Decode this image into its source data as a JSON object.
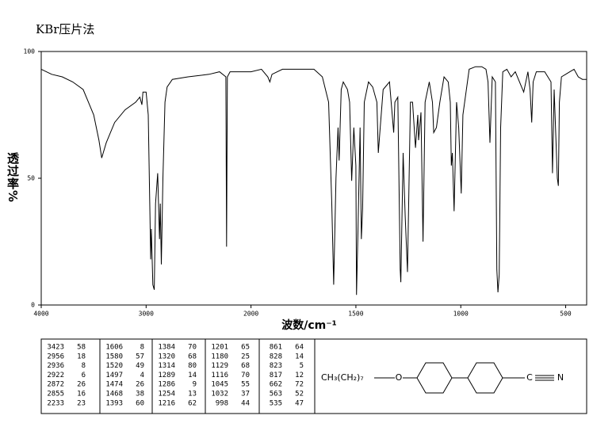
{
  "chart_data": {
    "type": "line",
    "title": "KBr压片法",
    "x_label": "波数/cm⁻¹",
    "y_label": "透过率%",
    "color": "#000000",
    "x": [
      4000,
      3900,
      3800,
      3700,
      3600,
      3500,
      3450,
      3423,
      3380,
      3300,
      3200,
      3100,
      3060,
      3040,
      3030,
      3000,
      2980,
      2956,
      2950,
      2936,
      2922,
      2910,
      2890,
      2872,
      2865,
      2855,
      2840,
      2820,
      2800,
      2750,
      2600,
      2400,
      2300,
      2240,
      2233,
      2225,
      2200,
      2100,
      2000,
      1950,
      1920,
      1910,
      1900,
      1850,
      1800,
      1700,
      1660,
      1630,
      1615,
      1606,
      1595,
      1585,
      1580,
      1570,
      1560,
      1540,
      1530,
      1520,
      1510,
      1500,
      1497,
      1490,
      1480,
      1474,
      1468,
      1460,
      1440,
      1420,
      1400,
      1393,
      1384,
      1370,
      1340,
      1320,
      1314,
      1300,
      1289,
      1286,
      1275,
      1265,
      1254,
      1240,
      1230,
      1216,
      1205,
      1201,
      1190,
      1180,
      1170,
      1150,
      1135,
      1129,
      1116,
      1100,
      1080,
      1060,
      1050,
      1045,
      1040,
      1032,
      1020,
      1010,
      998,
      990,
      960,
      930,
      900,
      880,
      870,
      861,
      850,
      835,
      828,
      823,
      817,
      810,
      800,
      780,
      760,
      740,
      720,
      700,
      680,
      670,
      662,
      655,
      640,
      600,
      570,
      563,
      555,
      540,
      535,
      530,
      520,
      500,
      480,
      460,
      440,
      420,
      400
    ],
    "values": [
      93,
      91,
      90,
      88,
      85,
      75,
      65,
      58,
      64,
      72,
      77,
      80,
      82,
      79,
      84,
      84,
      75,
      18,
      30,
      8,
      6,
      40,
      52,
      26,
      40,
      16,
      50,
      80,
      86,
      89,
      90,
      91,
      92,
      90,
      23,
      90,
      92,
      92,
      92,
      93,
      90,
      88,
      91,
      93,
      93,
      93,
      90,
      80,
      40,
      8,
      50,
      70,
      57,
      85,
      88,
      85,
      80,
      49,
      70,
      55,
      4,
      30,
      70,
      26,
      38,
      80,
      88,
      86,
      80,
      60,
      70,
      85,
      88,
      68,
      80,
      82,
      14,
      9,
      60,
      35,
      13,
      80,
      80,
      62,
      75,
      65,
      76,
      25,
      80,
      88,
      80,
      68,
      70,
      80,
      90,
      88,
      80,
      55,
      60,
      37,
      80,
      70,
      44,
      75,
      93,
      94,
      94,
      93,
      88,
      64,
      90,
      88,
      14,
      5,
      12,
      70,
      92,
      93,
      90,
      92,
      88,
      84,
      92,
      85,
      72,
      88,
      92,
      92,
      88,
      52,
      85,
      50,
      47,
      80,
      90,
      91,
      92,
      93,
      90,
      89,
      89
    ],
    "xlim": [
      4000,
      400
    ],
    "xticks": [
      4000,
      3000,
      2000,
      1500,
      1000,
      500
    ],
    "ylim": [
      0,
      100
    ],
    "yticks": [
      0,
      50,
      100
    ]
  },
  "peak_table": {
    "columns": [
      [
        [
          3423,
          58
        ],
        [
          2956,
          18
        ],
        [
          2936,
          8
        ],
        [
          2922,
          6
        ],
        [
          2872,
          26
        ],
        [
          2855,
          16
        ],
        [
          2233,
          23
        ]
      ],
      [
        [
          1606,
          8
        ],
        [
          1580,
          57
        ],
        [
          1520,
          49
        ],
        [
          1497,
          4
        ],
        [
          1474,
          26
        ],
        [
          1468,
          38
        ],
        [
          1393,
          60
        ]
      ],
      [
        [
          1384,
          70
        ],
        [
          1320,
          68
        ],
        [
          1314,
          80
        ],
        [
          1289,
          14
        ],
        [
          1286,
          9
        ],
        [
          1254,
          13
        ],
        [
          1216,
          62
        ]
      ],
      [
        [
          1201,
          65
        ],
        [
          1180,
          25
        ],
        [
          1129,
          68
        ],
        [
          1116,
          70
        ],
        [
          1045,
          55
        ],
        [
          1032,
          37
        ],
        [
          998,
          44
        ]
      ],
      [
        [
          861,
          64
        ],
        [
          828,
          14
        ],
        [
          823,
          5
        ],
        [
          817,
          12
        ],
        [
          662,
          72
        ],
        [
          563,
          52
        ],
        [
          535,
          47
        ]
      ]
    ]
  },
  "structure": {
    "chain": "CH₃(CH₂)₇",
    "oxygen": "O",
    "carbon": "C",
    "nitrogen": "N"
  }
}
